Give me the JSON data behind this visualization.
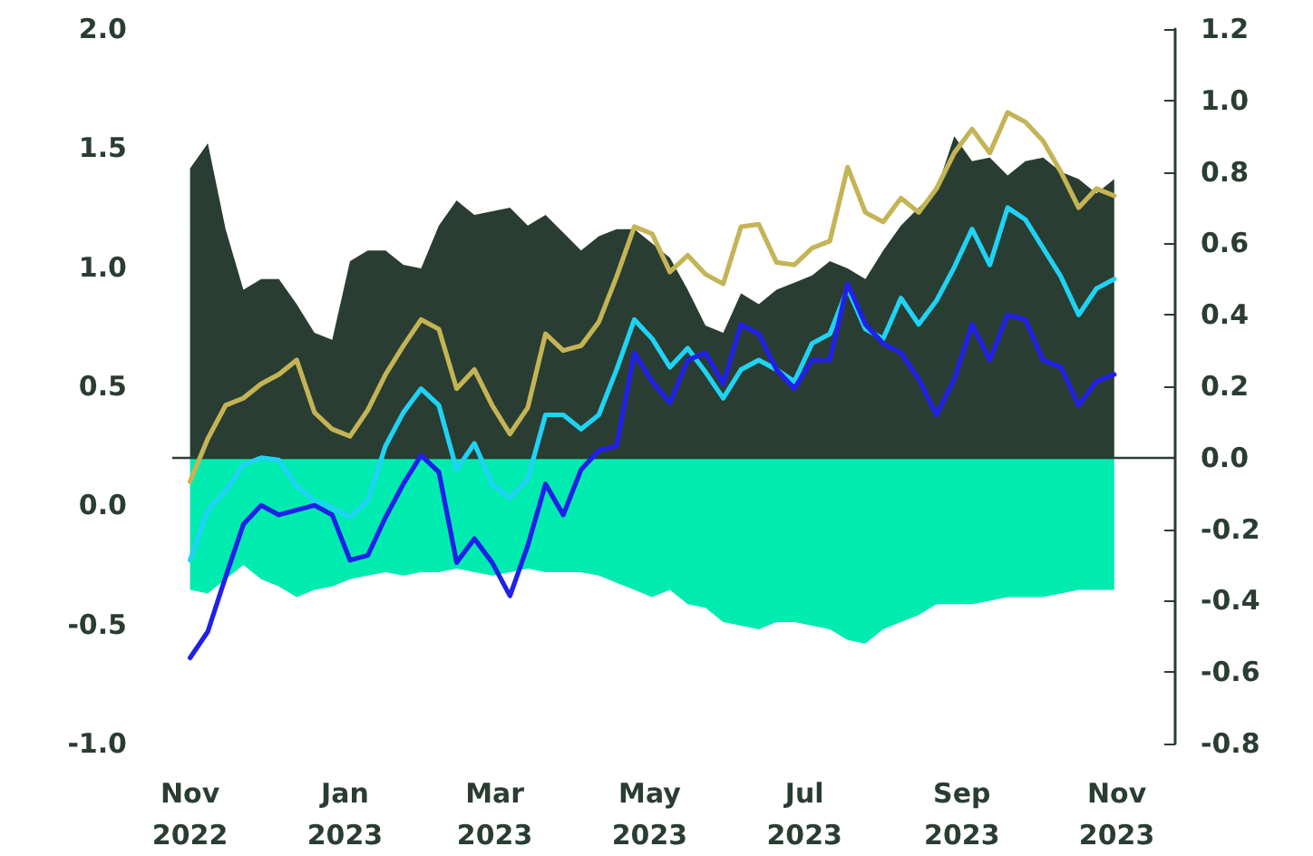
{
  "chart_data": {
    "type": "line",
    "x": [
      "2022-11-01",
      "2022-11-08",
      "2022-11-15",
      "2022-11-22",
      "2022-11-29",
      "2022-12-06",
      "2022-12-13",
      "2022-12-20",
      "2022-12-27",
      "2023-01-03",
      "2023-01-10",
      "2023-01-17",
      "2023-01-24",
      "2023-01-31",
      "2023-02-07",
      "2023-02-14",
      "2023-02-21",
      "2023-02-28",
      "2023-03-07",
      "2023-03-14",
      "2023-03-21",
      "2023-03-28",
      "2023-04-04",
      "2023-04-11",
      "2023-04-18",
      "2023-04-25",
      "2023-05-02",
      "2023-05-09",
      "2023-05-16",
      "2023-05-23",
      "2023-05-30",
      "2023-06-06",
      "2023-06-13",
      "2023-06-20",
      "2023-06-27",
      "2023-07-04",
      "2023-07-11",
      "2023-07-18",
      "2023-07-25",
      "2023-08-01",
      "2023-08-08",
      "2023-08-15",
      "2023-08-22",
      "2023-08-29",
      "2023-09-05",
      "2023-09-12",
      "2023-09-19",
      "2023-09-26",
      "2023-10-03",
      "2023-10-10",
      "2023-10-17",
      "2023-10-24",
      "2023-10-31"
    ],
    "series": [
      {
        "type": "area",
        "axis": "y2",
        "color": "#2a3d32",
        "values": [
          0.81,
          0.88,
          0.64,
          0.47,
          0.5,
          0.5,
          0.43,
          0.35,
          0.33,
          0.55,
          0.58,
          0.58,
          0.54,
          0.53,
          0.65,
          0.72,
          0.68,
          0.69,
          0.7,
          0.65,
          0.68,
          0.63,
          0.58,
          0.62,
          0.64,
          0.64,
          0.6,
          0.56,
          0.47,
          0.37,
          0.35,
          0.46,
          0.43,
          0.47,
          0.49,
          0.51,
          0.55,
          0.53,
          0.5,
          0.58,
          0.65,
          0.7,
          0.75,
          0.9,
          0.83,
          0.84,
          0.79,
          0.83,
          0.84,
          0.8,
          0.78,
          0.74,
          0.78
        ]
      },
      {
        "type": "area",
        "axis": "y2",
        "color": "#00ebb0",
        "values": [
          -0.37,
          -0.38,
          -0.34,
          -0.3,
          -0.34,
          -0.36,
          -0.39,
          -0.37,
          -0.36,
          -0.34,
          -0.33,
          -0.32,
          -0.33,
          -0.32,
          -0.32,
          -0.31,
          -0.32,
          -0.33,
          -0.32,
          -0.31,
          -0.32,
          -0.32,
          -0.32,
          -0.33,
          -0.35,
          -0.37,
          -0.39,
          -0.37,
          -0.41,
          -0.42,
          -0.46,
          -0.47,
          -0.48,
          -0.46,
          -0.46,
          -0.47,
          -0.48,
          -0.51,
          -0.52,
          -0.48,
          -0.46,
          -0.44,
          -0.41,
          -0.41,
          -0.41,
          -0.4,
          -0.39,
          -0.39,
          -0.39,
          -0.38,
          -0.37,
          -0.37,
          -0.37
        ]
      },
      {
        "color": "#c4b455",
        "values": [
          0.1,
          0.28,
          0.42,
          0.45,
          0.51,
          0.55,
          0.61,
          0.39,
          0.32,
          0.29,
          0.4,
          0.55,
          0.67,
          0.78,
          0.74,
          0.49,
          0.57,
          0.42,
          0.3,
          0.41,
          0.72,
          0.65,
          0.67,
          0.77,
          0.96,
          1.17,
          1.14,
          0.98,
          1.05,
          0.97,
          0.93,
          1.17,
          1.18,
          1.02,
          1.01,
          1.08,
          1.11,
          1.42,
          1.23,
          1.19,
          1.29,
          1.23,
          1.33,
          1.48,
          1.58,
          1.48,
          1.65,
          1.61,
          1.53,
          1.4,
          1.25,
          1.33,
          1.3
        ]
      },
      {
        "color": "#1fd3f5",
        "values": [
          -0.23,
          -0.02,
          0.06,
          0.17,
          0.2,
          0.19,
          0.08,
          0.02,
          -0.01,
          -0.05,
          0.02,
          0.25,
          0.39,
          0.49,
          0.42,
          0.15,
          0.26,
          0.09,
          0.03,
          0.11,
          0.38,
          0.38,
          0.32,
          0.38,
          0.57,
          0.78,
          0.7,
          0.58,
          0.66,
          0.56,
          0.45,
          0.57,
          0.61,
          0.57,
          0.52,
          0.68,
          0.72,
          0.91,
          0.74,
          0.7,
          0.87,
          0.76,
          0.86,
          1.0,
          1.16,
          1.01,
          1.25,
          1.2,
          1.08,
          0.96,
          0.8,
          0.91,
          0.95
        ]
      },
      {
        "color": "#2020e8",
        "values": [
          -0.64,
          -0.53,
          -0.3,
          -0.08,
          0.0,
          -0.04,
          -0.02,
          0.0,
          -0.04,
          -0.23,
          -0.21,
          -0.05,
          0.09,
          0.21,
          0.14,
          -0.24,
          -0.14,
          -0.24,
          -0.38,
          -0.17,
          0.09,
          -0.04,
          0.15,
          0.23,
          0.25,
          0.64,
          0.52,
          0.43,
          0.61,
          0.64,
          0.51,
          0.76,
          0.72,
          0.57,
          0.49,
          0.61,
          0.61,
          0.93,
          0.76,
          0.68,
          0.64,
          0.53,
          0.38,
          0.53,
          0.76,
          0.61,
          0.8,
          0.78,
          0.61,
          0.58,
          0.42,
          0.52,
          0.55
        ]
      }
    ],
    "xlim": [
      "2022-10-25",
      "2023-11-24"
    ],
    "xticks": [
      {
        "value": "2022-11-01",
        "label": "Nov 2022"
      },
      {
        "value": "2023-01-01",
        "label": "Jan 2023"
      },
      {
        "value": "2023-03-01",
        "label": "Mar 2023"
      },
      {
        "value": "2023-05-01",
        "label": "May 2023"
      },
      {
        "value": "2023-07-01",
        "label": "Jul 2023"
      },
      {
        "value": "2023-09-01",
        "label": "Sep 2023"
      },
      {
        "value": "2023-11-01",
        "label": "Nov 2023"
      }
    ],
    "ylim": [
      -1,
      2
    ],
    "yticks": [
      {
        "value": -1,
        "label": "-1.0"
      },
      {
        "value": -0.5,
        "label": "-0.5"
      },
      {
        "value": 0,
        "label": "0.0"
      },
      {
        "value": 0.5,
        "label": "0.5"
      },
      {
        "value": 1,
        "label": "1.0"
      },
      {
        "value": 1.5,
        "label": "1.5"
      },
      {
        "value": 2,
        "label": "2.0"
      }
    ],
    "y2lim": [
      -0.8,
      1.2
    ],
    "y2ticks": [
      {
        "value": -0.8,
        "label": "-0.8"
      },
      {
        "value": -0.6,
        "label": "-0.6"
      },
      {
        "value": -0.4,
        "label": "-0.4"
      },
      {
        "value": -0.2,
        "label": "-0.2"
      },
      {
        "value": 0,
        "label": "0.0"
      },
      {
        "value": 0.2,
        "label": "0.2"
      },
      {
        "value": 0.4,
        "label": "0.4"
      },
      {
        "value": 0.6,
        "label": "0.6"
      },
      {
        "value": 0.8,
        "label": "0.8"
      },
      {
        "value": 1,
        "label": "1.0"
      },
      {
        "value": 1.2,
        "label": "1.2"
      }
    ],
    "ref_lines": [
      {
        "axis": "y2",
        "value": 0,
        "color": "#2a3d32"
      }
    ],
    "grid": false,
    "marker": "none",
    "line_style": "solid"
  }
}
